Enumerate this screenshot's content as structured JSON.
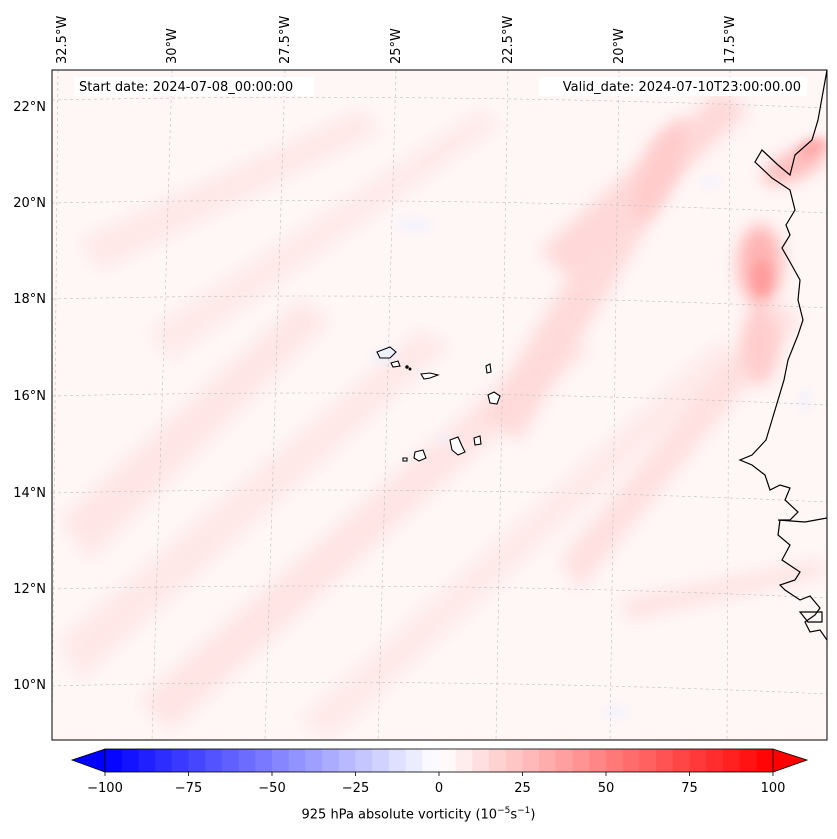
{
  "map": {
    "start_date": "Start date: 2024-07-08_00:00:00",
    "valid_date": "Valid_date: 2024-07-10T23:00:00.00",
    "lon_labels": [
      "32.5°W",
      "30°W",
      "27.5°W",
      "25°W",
      "22.5°W",
      "20°W",
      "17.5°W"
    ],
    "lat_labels": [
      "22°N",
      "20°N",
      "18°N",
      "16°N",
      "14°N",
      "12°N",
      "10°N"
    ]
  },
  "colorbar": {
    "ticks": [
      "−100",
      "−75",
      "−50",
      "−25",
      "0",
      "25",
      "50",
      "75",
      "100"
    ],
    "title_prefix": "925 hPa absolute vorticity (10",
    "title_exp1": "−5",
    "title_mid": "s",
    "title_exp2": "−1",
    "title_suffix": ")",
    "min_color": "#0000ff",
    "mid_color": "#ffffff",
    "max_color": "#ff0000"
  },
  "colors": {
    "frame": "#000000",
    "grid": "#bfbfbf",
    "coast": "#000000",
    "field_base": "#fff4f4"
  }
}
